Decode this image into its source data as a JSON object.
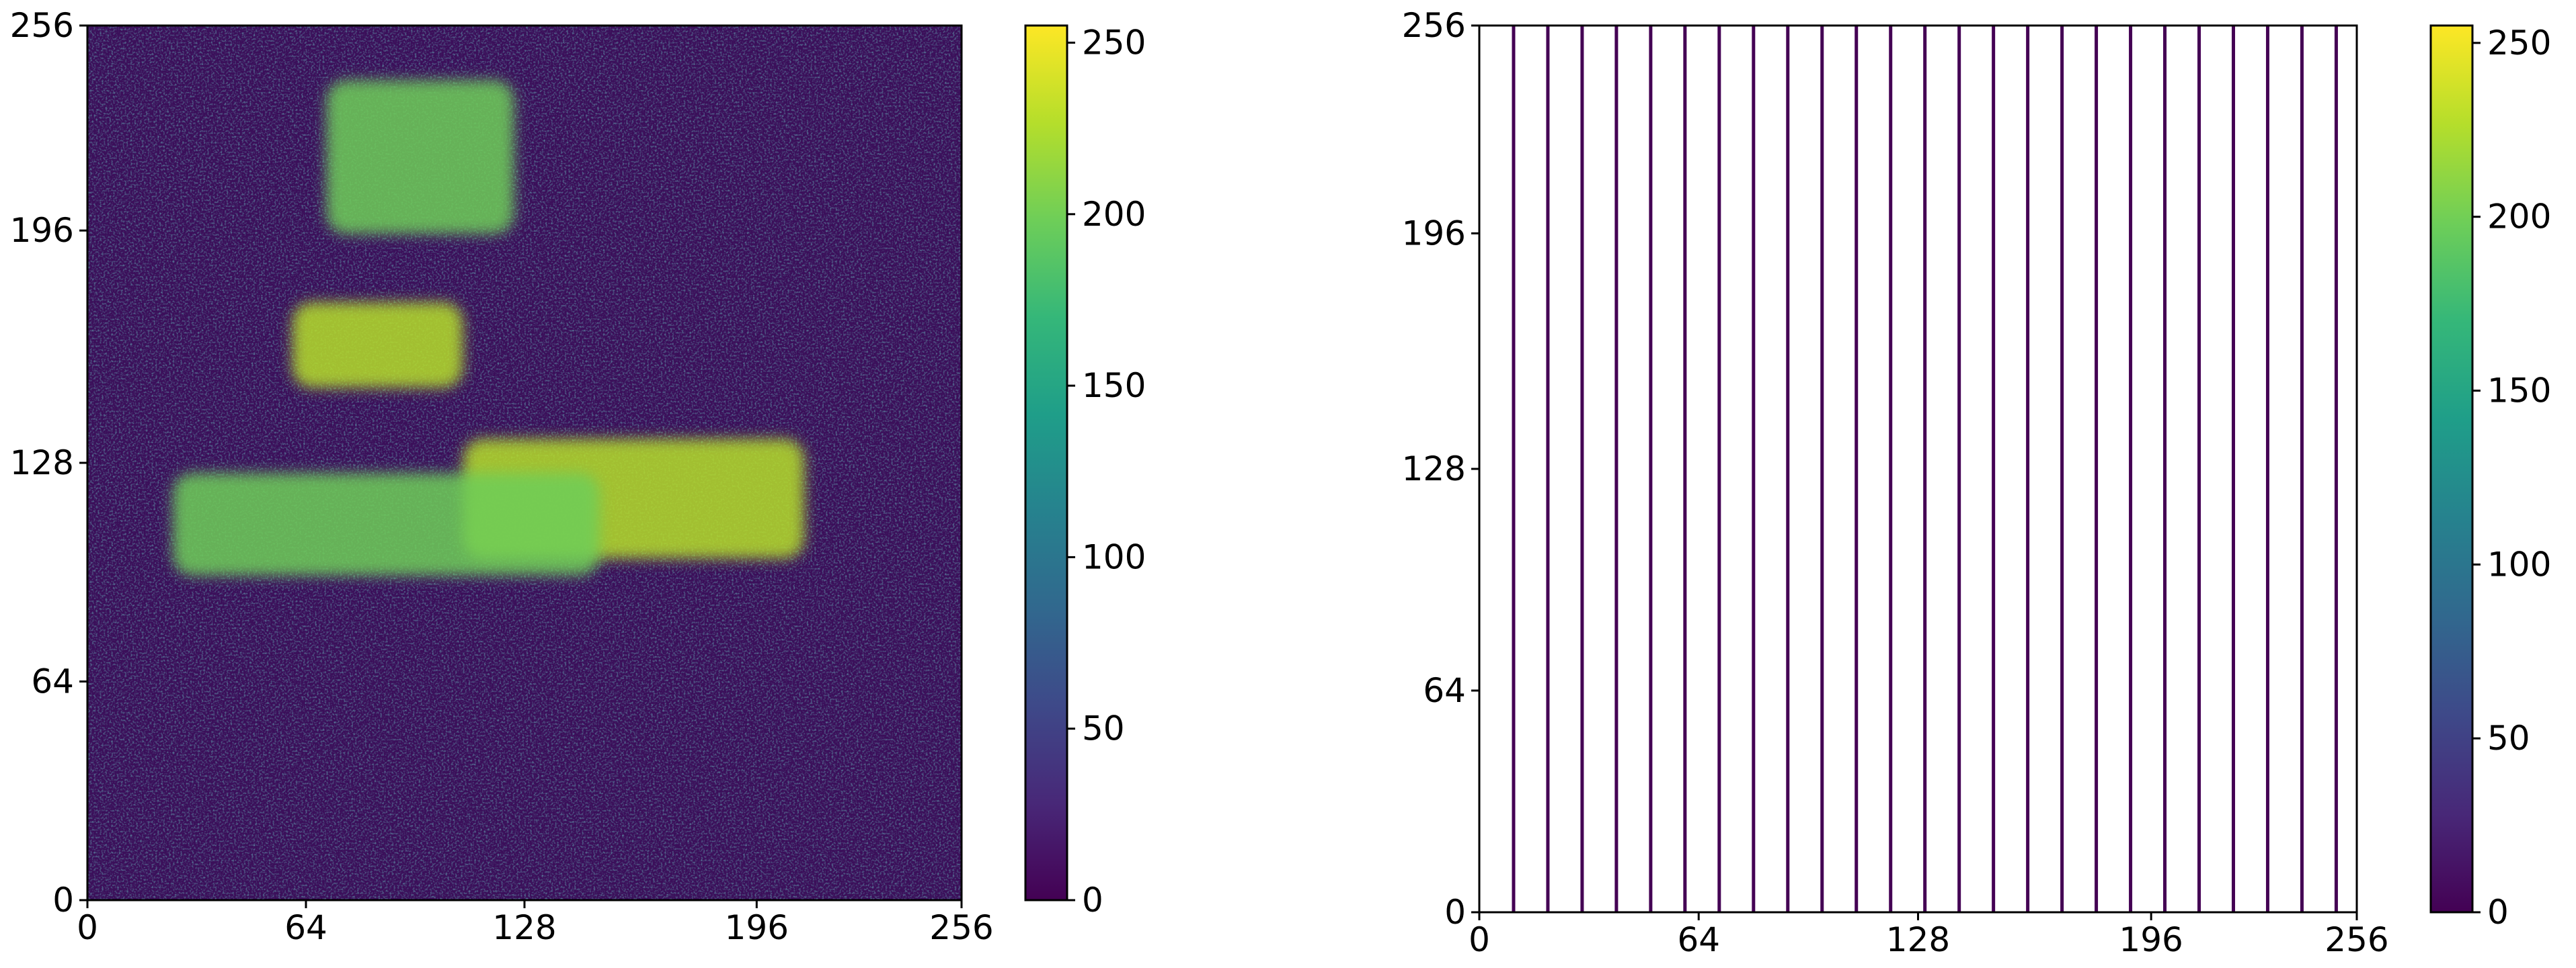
{
  "chart_data": [
    {
      "type": "heatmap",
      "title": "",
      "xlabel": "",
      "ylabel": "",
      "xlim": [
        0,
        256
      ],
      "ylim": [
        0,
        256
      ],
      "xticks": [
        0,
        64,
        128,
        196,
        256
      ],
      "yticks": [
        0,
        64,
        128,
        196,
        256
      ],
      "colormap": "viridis",
      "colorbar": {
        "range": [
          0,
          255
        ],
        "ticks": [
          0,
          50,
          100,
          150,
          200,
          250
        ]
      },
      "bright_regions": [
        {
          "x": [
            110,
            210
          ],
          "y": [
            100,
            135
          ],
          "value": 240
        },
        {
          "x": [
            25,
            150
          ],
          "y": [
            95,
            125
          ],
          "value": 190
        },
        {
          "x": [
            60,
            110
          ],
          "y": [
            150,
            175
          ],
          "value": 230
        },
        {
          "x": [
            70,
            125
          ],
          "y": [
            195,
            240
          ],
          "value": 210
        }
      ]
    },
    {
      "type": "heatmap",
      "title": "",
      "xlabel": "",
      "ylabel": "",
      "xlim": [
        0,
        256
      ],
      "ylim": [
        0,
        256
      ],
      "xticks": [
        0,
        64,
        128,
        196,
        256
      ],
      "yticks": [
        0,
        64,
        128,
        196,
        256
      ],
      "colormap": "viridis",
      "colorbar": {
        "range": [
          0,
          255
        ],
        "ticks": [
          0,
          50,
          100,
          150,
          200,
          250
        ]
      },
      "sampled_columns_x": [
        10,
        20,
        30,
        40,
        50,
        60,
        70,
        80,
        90,
        100,
        110,
        120,
        130,
        140,
        150,
        160,
        170,
        180,
        190,
        200,
        210,
        220,
        230,
        240,
        250
      ]
    }
  ],
  "colors": {
    "viridis": [
      "#440154",
      "#482878",
      "#3e4989",
      "#31688e",
      "#26828e",
      "#1f9e89",
      "#35b779",
      "#6ece58",
      "#b5de2b",
      "#fde725"
    ],
    "background_dark": "#3b0f5a",
    "column_line": "#440154",
    "frame": "#000000"
  }
}
